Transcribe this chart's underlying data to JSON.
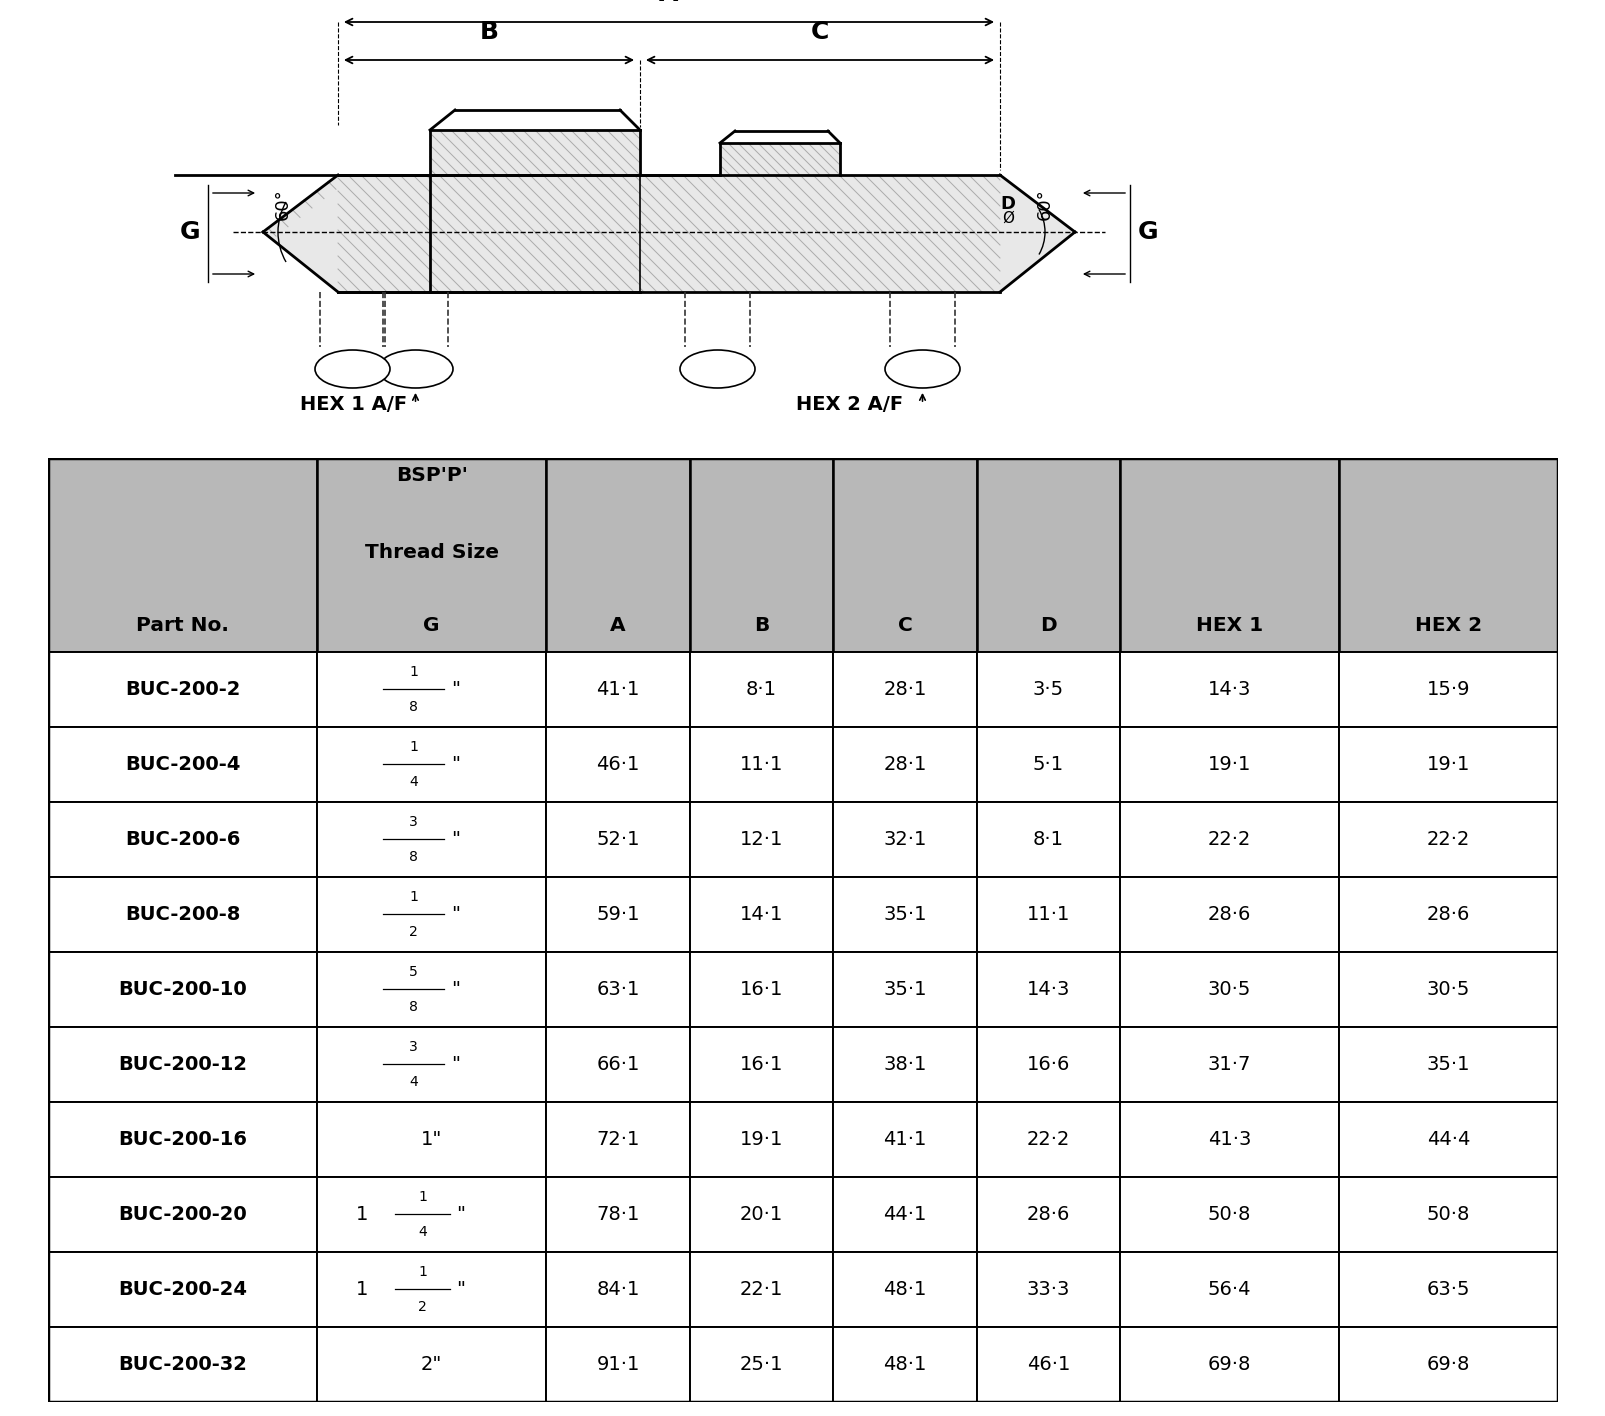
{
  "part_nos": [
    "BUC-200-2",
    "BUC-200-4",
    "BUC-200-6",
    "BUC-200-8",
    "BUC-200-10",
    "BUC-200-12",
    "BUC-200-16",
    "BUC-200-20",
    "BUC-200-24",
    "BUC-200-32"
  ],
  "thread_num": [
    "1",
    "1",
    "3",
    "1",
    "5",
    "3",
    "",
    "",
    "",
    ""
  ],
  "thread_den": [
    "8",
    "4",
    "8",
    "2",
    "8",
    "4",
    "",
    "",
    "",
    ""
  ],
  "thread_whole": [
    "",
    "",
    "",
    "",
    "",
    "",
    "1",
    "",
    "",
    "2"
  ],
  "thread_mixed_whole": [
    "",
    "",
    "",
    "",
    "",
    "",
    "",
    "1",
    "1",
    ""
  ],
  "thread_mixed_num": [
    "",
    "",
    "",
    "",
    "",
    "",
    "",
    "1",
    "1",
    ""
  ],
  "thread_mixed_den": [
    "",
    "",
    "",
    "",
    "",
    "",
    "",
    "4",
    "2",
    ""
  ],
  "col_A": [
    "41·1",
    "46·1",
    "52·1",
    "59·1",
    "63·1",
    "66·1",
    "72·1",
    "78·1",
    "84·1",
    "91·1"
  ],
  "col_B": [
    "8·1",
    "11·1",
    "12·1",
    "14·1",
    "16·1",
    "16·1",
    "19·1",
    "20·1",
    "22·1",
    "25·1"
  ],
  "col_C": [
    "28·1",
    "28·1",
    "32·1",
    "35·1",
    "35·1",
    "38·1",
    "41·1",
    "44·1",
    "48·1",
    "48·1"
  ],
  "col_D": [
    "3·5",
    "5·1",
    "8·1",
    "11·1",
    "14·3",
    "16·6",
    "22·2",
    "28·6",
    "33·3",
    "46·1"
  ],
  "col_HEX1": [
    "14·3",
    "19·1",
    "22·2",
    "28·6",
    "30·5",
    "31·7",
    "41·3",
    "50·8",
    "56·4",
    "69·8"
  ],
  "col_HEX2": [
    "15·9",
    "19·1",
    "22·2",
    "28·6",
    "30·5",
    "35·1",
    "44·4",
    "50·8",
    "63·5",
    "69·8"
  ],
  "header_bg": "#b8b8b8",
  "white": "#ffffff",
  "black": "#000000",
  "bg": "#ffffff"
}
